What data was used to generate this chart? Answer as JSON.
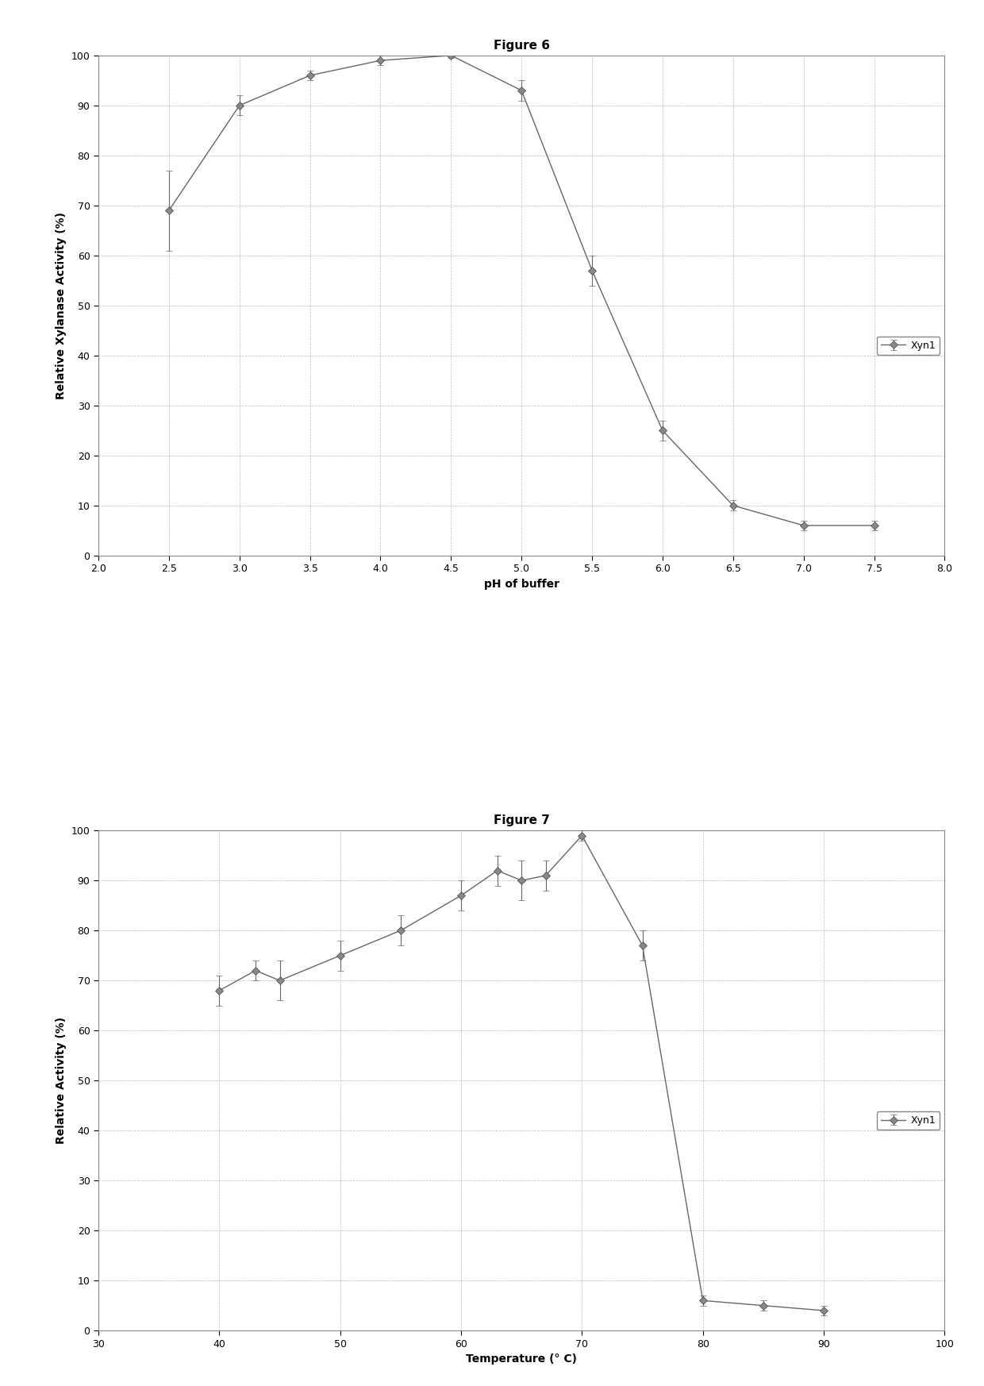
{
  "fig6": {
    "title": "Figure 6",
    "xlabel": "pH of buffer",
    "ylabel": "Relative Xylanase Activity (%)",
    "xlim": [
      2,
      8
    ],
    "ylim": [
      0,
      100
    ],
    "xticks": [
      2,
      2.5,
      3,
      3.5,
      4,
      4.5,
      5,
      5.5,
      6,
      6.5,
      7,
      7.5,
      8
    ],
    "yticks": [
      0,
      10,
      20,
      30,
      40,
      50,
      60,
      70,
      80,
      90,
      100
    ],
    "x": [
      2.5,
      3.0,
      3.5,
      4.0,
      4.5,
      5.0,
      5.5,
      6.0,
      6.5,
      7.0,
      7.5
    ],
    "y": [
      69,
      90,
      96,
      99,
      100,
      93,
      57,
      25,
      10,
      6,
      6
    ],
    "yerr": [
      8,
      2,
      1,
      1,
      0.5,
      2,
      3,
      2,
      1,
      1,
      1
    ],
    "legend_label": "Xyn1",
    "line_color": "#666666",
    "marker": "D",
    "marker_size": 5,
    "line_width": 1.0
  },
  "fig7": {
    "title": "Figure 7",
    "xlabel": "Temperature (° C)",
    "ylabel": "Relative Activity (%)",
    "xlim": [
      30,
      100
    ],
    "ylim": [
      0,
      100
    ],
    "xticks": [
      30,
      40,
      50,
      60,
      70,
      80,
      90,
      100
    ],
    "yticks": [
      0,
      10,
      20,
      30,
      40,
      50,
      60,
      70,
      80,
      90,
      100
    ],
    "x": [
      40,
      43,
      45,
      50,
      55,
      60,
      63,
      65,
      67,
      70,
      75,
      80,
      85,
      90
    ],
    "y": [
      68,
      72,
      70,
      75,
      80,
      87,
      92,
      90,
      91,
      99,
      77,
      6,
      5,
      4
    ],
    "yerr": [
      3,
      2,
      4,
      3,
      3,
      3,
      3,
      4,
      3,
      1,
      3,
      1,
      1,
      1
    ],
    "legend_label": "Xyn1",
    "line_color": "#666666",
    "marker": "D",
    "marker_size": 5,
    "line_width": 1.0
  },
  "fig_background": "#ffffff",
  "plot_background": "#ffffff",
  "grid_color": "#aaaaaa",
  "grid_style": "--",
  "grid_alpha": 0.8,
  "title_fontsize": 11,
  "label_fontsize": 10,
  "tick_fontsize": 9,
  "legend_fontsize": 9,
  "box_color": "#888888"
}
